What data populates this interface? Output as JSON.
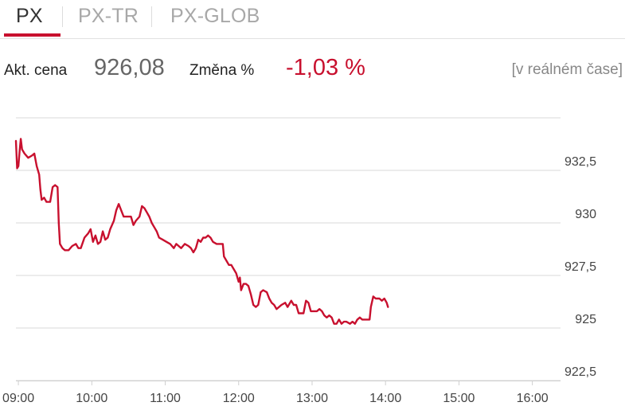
{
  "tabs": [
    {
      "label": "PX",
      "active": true
    },
    {
      "label": "PX-TR",
      "active": false
    },
    {
      "label": "PX-GLOB",
      "active": false
    }
  ],
  "info": {
    "price_label": "Akt. cena",
    "price_value": "926,08",
    "change_label": "Změna %",
    "change_value": "-1,03 %",
    "realtime_label": "[v reálném čase]"
  },
  "colors": {
    "accent": "#c8102e",
    "line": "#c8102e",
    "grid": "#d8d8d8",
    "axis_text": "#444444"
  },
  "chart_data": {
    "type": "line",
    "title": "",
    "xlabel": "",
    "ylabel": "",
    "xlim": [
      "08:58",
      "16:23"
    ],
    "ylim": [
      922.5,
      935
    ],
    "grid": true,
    "y_axis_position": "right",
    "x_ticks": [
      "09:00",
      "10:00",
      "11:00",
      "12:00",
      "13:00",
      "14:00",
      "15:00",
      "16:00"
    ],
    "y_ticks": [
      {
        "value": 922.5,
        "label": "922,5"
      },
      {
        "value": 925,
        "label": "925"
      },
      {
        "value": 927.5,
        "label": "927,5"
      },
      {
        "value": 930,
        "label": "930"
      },
      {
        "value": 932.5,
        "label": "932,5"
      }
    ],
    "series": [
      {
        "values": [
          [
            "08:58",
            933.9
          ],
          [
            "08:59",
            932.6
          ],
          [
            "09:00",
            932.7
          ],
          [
            "09:01",
            933.4
          ],
          [
            "09:02",
            934.0
          ],
          [
            "09:03",
            933.5
          ],
          [
            "09:05",
            933.3
          ],
          [
            "09:08",
            933.1
          ],
          [
            "09:11",
            933.2
          ],
          [
            "09:13",
            933.3
          ],
          [
            "09:15",
            932.7
          ],
          [
            "09:17",
            932.3
          ],
          [
            "09:18",
            931.6
          ],
          [
            "09:19",
            931.1
          ],
          [
            "09:21",
            931.2
          ],
          [
            "09:23",
            931.0
          ],
          [
            "09:26",
            931.0
          ],
          [
            "09:28",
            931.7
          ],
          [
            "09:30",
            931.8
          ],
          [
            "09:32",
            931.7
          ],
          [
            "09:33",
            930.0
          ],
          [
            "09:34",
            929.0
          ],
          [
            "09:36",
            928.8
          ],
          [
            "09:38",
            928.7
          ],
          [
            "09:41",
            928.7
          ],
          [
            "09:44",
            928.9
          ],
          [
            "09:47",
            929.0
          ],
          [
            "09:49",
            928.8
          ],
          [
            "09:51",
            928.8
          ],
          [
            "09:54",
            929.3
          ],
          [
            "09:57",
            929.5
          ],
          [
            "09:59",
            929.7
          ],
          [
            "10:01",
            929.1
          ],
          [
            "10:03",
            929.4
          ],
          [
            "10:05",
            929.0
          ],
          [
            "10:07",
            929.1
          ],
          [
            "10:09",
            929.6
          ],
          [
            "10:11",
            929.2
          ],
          [
            "10:13",
            929.3
          ],
          [
            "10:15",
            929.7
          ],
          [
            "10:18",
            930.1
          ],
          [
            "10:20",
            930.6
          ],
          [
            "10:22",
            930.9
          ],
          [
            "10:24",
            930.6
          ],
          [
            "10:26",
            930.3
          ],
          [
            "10:29",
            930.3
          ],
          [
            "10:32",
            930.3
          ],
          [
            "10:34",
            929.9
          ],
          [
            "10:36",
            930.1
          ],
          [
            "10:39",
            930.3
          ],
          [
            "10:41",
            930.8
          ],
          [
            "10:43",
            930.7
          ],
          [
            "10:45",
            930.5
          ],
          [
            "10:47",
            930.3
          ],
          [
            "10:49",
            930.0
          ],
          [
            "10:51",
            929.8
          ],
          [
            "10:53",
            929.6
          ],
          [
            "10:55",
            929.3
          ],
          [
            "10:58",
            929.2
          ],
          [
            "11:01",
            929.1
          ],
          [
            "11:04",
            929.0
          ],
          [
            "11:07",
            928.8
          ],
          [
            "11:09",
            929.0
          ],
          [
            "11:11",
            928.9
          ],
          [
            "11:13",
            928.8
          ],
          [
            "11:16",
            929.0
          ],
          [
            "11:19",
            928.9
          ],
          [
            "11:21",
            928.8
          ],
          [
            "11:23",
            928.6
          ],
          [
            "11:25",
            928.8
          ],
          [
            "11:27",
            929.2
          ],
          [
            "11:29",
            929.1
          ],
          [
            "11:31",
            929.3
          ],
          [
            "11:33",
            929.3
          ],
          [
            "11:35",
            929.4
          ],
          [
            "11:37",
            929.3
          ],
          [
            "11:39",
            929.1
          ],
          [
            "11:42",
            929.0
          ],
          [
            "11:45",
            929.0
          ],
          [
            "11:47",
            929.0
          ],
          [
            "11:48",
            928.4
          ],
          [
            "11:50",
            928.2
          ],
          [
            "11:52",
            928.0
          ],
          [
            "11:54",
            928.0
          ],
          [
            "11:56",
            927.8
          ],
          [
            "11:58",
            927.6
          ],
          [
            "12:00",
            927.2
          ],
          [
            "12:01",
            927.4
          ],
          [
            "12:02",
            926.8
          ],
          [
            "12:04",
            927.1
          ],
          [
            "12:06",
            927.1
          ],
          [
            "12:08",
            927.0
          ],
          [
            "12:10",
            926.6
          ],
          [
            "12:12",
            926.1
          ],
          [
            "12:14",
            926.0
          ],
          [
            "12:16",
            926.1
          ],
          [
            "12:18",
            926.7
          ],
          [
            "12:20",
            926.8
          ],
          [
            "12:23",
            926.7
          ],
          [
            "12:25",
            926.4
          ],
          [
            "12:27",
            926.2
          ],
          [
            "12:29",
            926.1
          ],
          [
            "12:31",
            925.9
          ],
          [
            "12:33",
            926.0
          ],
          [
            "12:35",
            926.1
          ],
          [
            "12:38",
            926.2
          ],
          [
            "12:40",
            926.0
          ],
          [
            "12:43",
            926.3
          ],
          [
            "12:45",
            926.1
          ],
          [
            "12:47",
            926.1
          ],
          [
            "12:49",
            925.7
          ],
          [
            "12:51",
            925.7
          ],
          [
            "12:53",
            925.7
          ],
          [
            "12:55",
            926.3
          ],
          [
            "12:57",
            926.2
          ],
          [
            "12:59",
            925.8
          ],
          [
            "13:01",
            925.8
          ],
          [
            "13:04",
            925.8
          ],
          [
            "13:06",
            925.9
          ],
          [
            "13:08",
            925.8
          ],
          [
            "13:10",
            925.6
          ],
          [
            "13:12",
            925.5
          ],
          [
            "13:14",
            925.6
          ],
          [
            "13:16",
            925.5
          ],
          [
            "13:18",
            925.2
          ],
          [
            "13:20",
            925.2
          ],
          [
            "13:22",
            925.4
          ],
          [
            "13:24",
            925.2
          ],
          [
            "13:26",
            925.3
          ],
          [
            "13:28",
            925.3
          ],
          [
            "13:31",
            925.2
          ],
          [
            "13:33",
            925.3
          ],
          [
            "13:35",
            925.2
          ],
          [
            "13:37",
            925.4
          ],
          [
            "13:39",
            925.5
          ],
          [
            "13:41",
            925.4
          ],
          [
            "13:43",
            925.4
          ],
          [
            "13:45",
            925.4
          ],
          [
            "13:47",
            925.4
          ],
          [
            "13:48",
            926.0
          ],
          [
            "13:50",
            926.5
          ],
          [
            "13:52",
            926.4
          ],
          [
            "13:55",
            926.4
          ],
          [
            "13:57",
            926.3
          ],
          [
            "13:59",
            926.4
          ],
          [
            "14:01",
            926.2
          ],
          [
            "14:02",
            926.0
          ]
        ]
      }
    ]
  }
}
